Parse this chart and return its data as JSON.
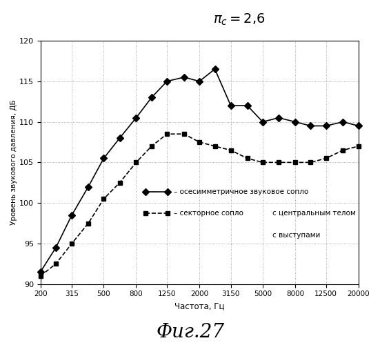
{
  "title_top": "$\\pi_c=2{,}6$",
  "xlabel": "Частота, Гц",
  "ylabel": "Уровень звукового давления, ДБ",
  "fig_label": "Фиг.27",
  "ylim": [
    90,
    120
  ],
  "x_ticks": [
    200,
    315,
    500,
    800,
    1250,
    2000,
    3150,
    5000,
    8000,
    12500,
    20000
  ],
  "x_tick_labels": [
    "200",
    "315",
    "500",
    "800",
    "1250",
    "2000",
    "3150",
    "5000",
    "8000",
    "12500",
    "20000"
  ],
  "y_ticks": [
    90,
    95,
    100,
    105,
    110,
    115,
    120
  ],
  "series1": {
    "x": [
      200,
      250,
      315,
      400,
      500,
      630,
      800,
      1000,
      1250,
      1600,
      2000,
      2500,
      3150,
      4000,
      5000,
      6300,
      8000,
      10000,
      12500,
      16000,
      20000
    ],
    "y": [
      91.5,
      94.5,
      98.5,
      102.0,
      105.5,
      108.0,
      110.5,
      113.0,
      115.0,
      115.5,
      115.0,
      116.5,
      112.0,
      112.0,
      110.0,
      110.5,
      110.0,
      109.5,
      109.5,
      110.0,
      109.5
    ],
    "label": "– осесимметричное звуковое сопло",
    "marker": "D",
    "linestyle": "-",
    "color": "#000000",
    "markersize": 5,
    "markerfacecolor": "#000000"
  },
  "series2": {
    "x": [
      200,
      250,
      315,
      400,
      500,
      630,
      800,
      1000,
      1250,
      1600,
      2000,
      2500,
      3150,
      4000,
      5000,
      6300,
      8000,
      10000,
      12500,
      16000,
      20000
    ],
    "y": [
      91.0,
      92.5,
      95.0,
      97.5,
      100.5,
      102.5,
      105.0,
      107.0,
      108.5,
      108.5,
      107.5,
      107.0,
      106.5,
      105.5,
      105.0,
      105.0,
      105.0,
      105.0,
      105.5,
      106.5,
      107.0
    ],
    "label": "– секторное сопло",
    "marker": "s",
    "linestyle": "--",
    "color": "#000000",
    "markersize": 5,
    "markerfacecolor": "#000000"
  },
  "legend_extra1": "с центральным телом",
  "legend_extra2": "с выступами"
}
